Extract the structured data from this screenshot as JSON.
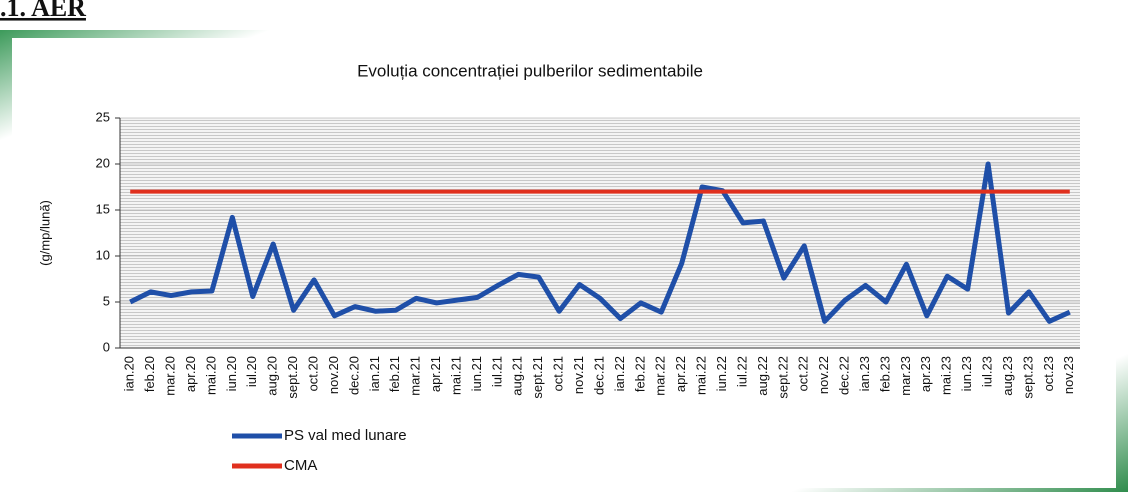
{
  "heading": ".1. AER",
  "chart_data": {
    "type": "line",
    "title": "Evoluția concentrației pulberilor sedimentabile",
    "y_label": "(g/mp/lună)",
    "categories": [
      "ian.20",
      "feb.20",
      "mar.20",
      "apr.20",
      "mai.20",
      "iun.20",
      "iul.20",
      "aug.20",
      "sept.20",
      "oct.20",
      "nov.20",
      "dec.20",
      "ian.21",
      "feb.21",
      "mar.21",
      "apr.21",
      "mai.21",
      "iun.21",
      "iul.21",
      "aug.21",
      "sept.21",
      "oct.21",
      "nov.21",
      "dec.21",
      "ian.22",
      "feb.22",
      "mar.22",
      "apr.22",
      "mai.22",
      "iun.22",
      "iul.22",
      "aug.22",
      "sept.22",
      "oct.22",
      "nov.22",
      "dec.22",
      "ian.23",
      "feb.23",
      "mar.23",
      "apr.23",
      "mai.23",
      "iun.23",
      "iul.23",
      "aug.23",
      "sept.23",
      "oct.23",
      "nov.23"
    ],
    "series": [
      {
        "name": "PS val med lunare",
        "color": "#1f4fa8",
        "values": [
          5,
          6.1,
          5.7,
          6.1,
          6.2,
          14.2,
          5.6,
          11.3,
          4.1,
          7.4,
          3.5,
          4.5,
          4.0,
          4.1,
          5.4,
          4.9,
          5.2,
          5.5,
          6.8,
          8.0,
          7.7,
          4.0,
          6.9,
          5.4,
          3.2,
          4.9,
          3.9,
          9.2,
          17.5,
          17.1,
          13.6,
          13.8,
          7.6,
          11.1,
          2.9,
          5.2,
          6.8,
          5.0,
          9.1,
          3.5,
          7.8,
          6.4,
          20.0,
          3.8,
          6.1,
          2.9,
          3.9
        ]
      },
      {
        "name": "CMA",
        "color": "#e0301e",
        "values": [
          17,
          17,
          17,
          17,
          17,
          17,
          17,
          17,
          17,
          17,
          17,
          17,
          17,
          17,
          17,
          17,
          17,
          17,
          17,
          17,
          17,
          17,
          17,
          17,
          17,
          17,
          17,
          17,
          17,
          17,
          17,
          17,
          17,
          17,
          17,
          17,
          17,
          17,
          17,
          17,
          17,
          17,
          17,
          17,
          17,
          17,
          17
        ]
      }
    ],
    "ylim": [
      0,
      25
    ],
    "yticks": [
      0,
      5,
      10,
      15,
      20,
      25
    ],
    "grid": true,
    "legend": "bottom-left"
  }
}
